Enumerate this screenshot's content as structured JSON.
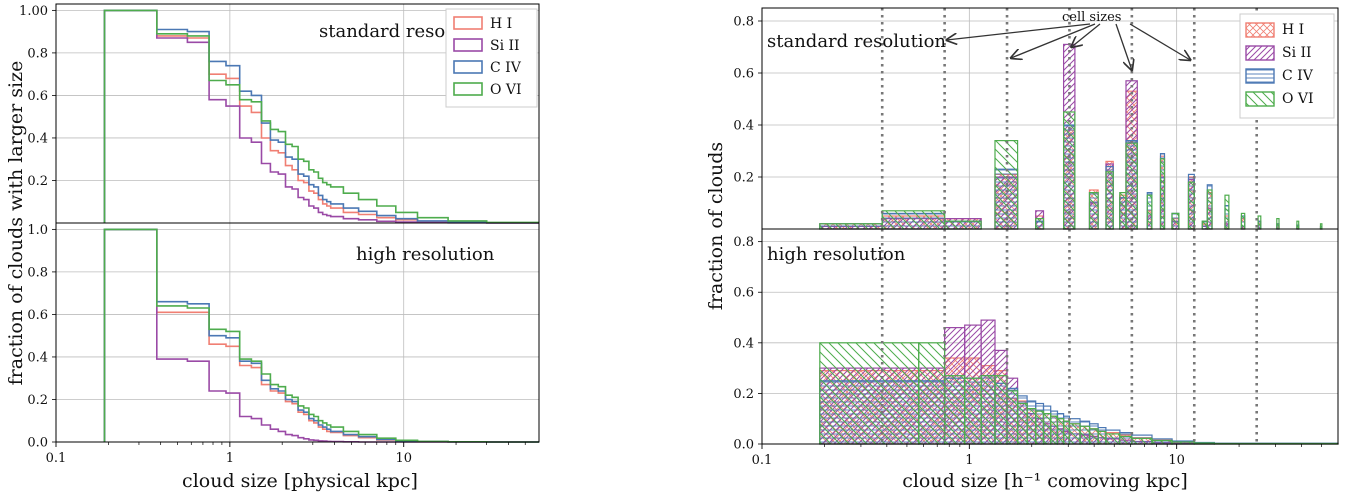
{
  "chart_data": [
    {
      "type": "line",
      "xlabel": "cloud size [physical kpc]",
      "ylabel": "fraction of clouds with larger size",
      "xscale": "log",
      "xlim": [
        0.1,
        60
      ],
      "x_ticks": [
        {
          "v": 0.1,
          "label": "0.1"
        },
        {
          "v": 1,
          "label": "1"
        },
        {
          "v": 10,
          "label": "10"
        }
      ],
      "grid": true,
      "legend": {
        "placement": "top-right",
        "entries": [
          "H I",
          "Si II",
          "C IV",
          "O VI"
        ]
      },
      "colors": {
        "H I": "#f07f73",
        "Si II": "#9a4aa6",
        "C IV": "#4b78b4",
        "O VI": "#4eac4d"
      },
      "edges": [
        0.19,
        0.38,
        0.57,
        0.76,
        0.95,
        1.14,
        1.33,
        1.52,
        1.71,
        1.9,
        2.09,
        2.28,
        2.47,
        2.66,
        2.85,
        3.04,
        3.23,
        3.42,
        3.61,
        3.8,
        4.5,
        5.5,
        7,
        9,
        12,
        18,
        30,
        60
      ],
      "panels": [
        {
          "title": "standard resolution",
          "ylim": [
            0,
            1.03
          ],
          "y_ticks": [
            {
              "v": 0.2,
              "label": "0.2"
            },
            {
              "v": 0.4,
              "label": "0.4"
            },
            {
              "v": 0.6,
              "label": "0.6"
            },
            {
              "v": 0.8,
              "label": "0.8"
            },
            {
              "v": 1.0,
              "label": "1.00"
            }
          ],
          "series": [
            {
              "name": "H I",
              "values": [
                1.0,
                0.88,
                0.87,
                0.7,
                0.68,
                0.55,
                0.52,
                0.4,
                0.34,
                0.33,
                0.27,
                0.25,
                0.2,
                0.19,
                0.15,
                0.14,
                0.11,
                0.09,
                0.08,
                0.07,
                0.05,
                0.04,
                0.025,
                0.015,
                0.008,
                0.003,
                0.001
              ]
            },
            {
              "name": "Si II",
              "values": [
                1.0,
                0.87,
                0.85,
                0.58,
                0.55,
                0.4,
                0.38,
                0.28,
                0.24,
                0.23,
                0.17,
                0.16,
                0.12,
                0.11,
                0.08,
                0.07,
                0.05,
                0.04,
                0.035,
                0.03,
                0.02,
                0.015,
                0.008,
                0.004,
                0.002,
                0.001,
                0.0
              ]
            },
            {
              "name": "C IV",
              "values": [
                1.0,
                0.91,
                0.9,
                0.76,
                0.74,
                0.62,
                0.6,
                0.47,
                0.39,
                0.38,
                0.31,
                0.3,
                0.23,
                0.22,
                0.18,
                0.17,
                0.13,
                0.11,
                0.1,
                0.09,
                0.07,
                0.055,
                0.035,
                0.02,
                0.01,
                0.004,
                0.001
              ]
            },
            {
              "name": "O VI",
              "values": [
                1.0,
                0.89,
                0.88,
                0.67,
                0.65,
                0.58,
                0.57,
                0.48,
                0.44,
                0.43,
                0.37,
                0.36,
                0.3,
                0.29,
                0.25,
                0.24,
                0.21,
                0.19,
                0.18,
                0.17,
                0.14,
                0.11,
                0.08,
                0.05,
                0.025,
                0.01,
                0.003
              ]
            }
          ]
        },
        {
          "title": "high resolution",
          "ylim": [
            0,
            1.03
          ],
          "y_ticks": [
            {
              "v": 0.0,
              "label": "0.0"
            },
            {
              "v": 0.2,
              "label": "0.2"
            },
            {
              "v": 0.4,
              "label": "0.4"
            },
            {
              "v": 0.6,
              "label": "0.6"
            },
            {
              "v": 0.8,
              "label": "0.8"
            },
            {
              "v": 1.0,
              "label": "1.0"
            }
          ],
          "series": [
            {
              "name": "H I",
              "values": [
                1.0,
                0.61,
                0.61,
                0.46,
                0.45,
                0.36,
                0.35,
                0.27,
                0.24,
                0.23,
                0.19,
                0.18,
                0.14,
                0.13,
                0.1,
                0.09,
                0.07,
                0.06,
                0.05,
                0.045,
                0.03,
                0.02,
                0.01,
                0.005,
                0.002,
                0.001,
                0.0
              ]
            },
            {
              "name": "Si II",
              "values": [
                1.0,
                0.39,
                0.38,
                0.24,
                0.23,
                0.12,
                0.11,
                0.08,
                0.06,
                0.05,
                0.035,
                0.03,
                0.02,
                0.015,
                0.01,
                0.008,
                0.005,
                0.004,
                0.003,
                0.002,
                0.001,
                0.0,
                0.0,
                0.0,
                0.0,
                0.0,
                0.0
              ]
            },
            {
              "name": "C IV",
              "values": [
                1.0,
                0.66,
                0.65,
                0.5,
                0.49,
                0.38,
                0.37,
                0.29,
                0.25,
                0.24,
                0.2,
                0.19,
                0.15,
                0.14,
                0.11,
                0.1,
                0.08,
                0.07,
                0.06,
                0.05,
                0.035,
                0.025,
                0.012,
                0.006,
                0.002,
                0.001,
                0.0
              ]
            },
            {
              "name": "O VI",
              "values": [
                1.0,
                0.64,
                0.63,
                0.53,
                0.52,
                0.39,
                0.38,
                0.32,
                0.27,
                0.26,
                0.22,
                0.21,
                0.17,
                0.16,
                0.13,
                0.12,
                0.1,
                0.09,
                0.08,
                0.07,
                0.05,
                0.035,
                0.018,
                0.008,
                0.003,
                0.001,
                0.0
              ]
            }
          ]
        }
      ]
    },
    {
      "type": "bar",
      "xlabel": "cloud size [h⁻¹ comoving kpc]",
      "ylabel": "fraction of clouds",
      "xscale": "log",
      "xlim": [
        0.1,
        60
      ],
      "x_ticks": [
        {
          "v": 0.1,
          "label": "0.1"
        },
        {
          "v": 1,
          "label": "1"
        },
        {
          "v": 10,
          "label": "10"
        }
      ],
      "grid": true,
      "legend": {
        "placement": "top-right",
        "entries": [
          "H I",
          "Si II",
          "C IV",
          "O VI"
        ]
      },
      "colors": {
        "H I": "#f07f73",
        "Si II": "#9a4aa6",
        "C IV": "#4b78b4",
        "O VI": "#4eac4d"
      },
      "cell_size_lines": [
        0.38,
        0.76,
        1.52,
        3.04,
        6.08,
        12.16,
        24.32
      ],
      "annotation": {
        "text": "cell sizes",
        "arrow_targets": [
          0.76,
          1.52,
          3.04,
          6.08,
          12.16
        ]
      },
      "panels": [
        {
          "title": "standard resolution",
          "ylim": [
            0,
            0.85
          ],
          "y_ticks": [
            {
              "v": 0.2,
              "label": "0.2"
            },
            {
              "v": 0.4,
              "label": "0.4"
            },
            {
              "v": 0.6,
              "label": "0.6"
            },
            {
              "v": 0.8,
              "label": "0.8"
            }
          ],
          "edges": [
            0.19,
            0.38,
            0.76,
            1.14,
            1.33,
            1.71,
            2.09,
            2.28,
            2.85,
            3.23,
            3.8,
            4.18,
            4.56,
            4.94,
            5.32,
            5.7,
            6.46,
            7.22,
            7.6,
            8.36,
            8.74,
            9.5,
            10.26,
            11.4,
            12.16,
            13.3,
            14.06,
            14.82,
            17.1,
            17.86,
            20.52,
            21.28,
            24.7,
            25.46,
            30.4,
            31.16,
            38.0,
            38.76,
            49.4,
            50.16,
            60.0
          ],
          "series": [
            {
              "name": "H I",
              "values": [
                0.02,
                0.05,
                0.04,
                0.0,
                0.21,
                0.0,
                0.05,
                0.0,
                0.38,
                0.0,
                0.15,
                0.0,
                0.26,
                0.0,
                0.13,
                0.53,
                0.0,
                0.07,
                0.0,
                0.28,
                0.0,
                0.04,
                0.0,
                0.2,
                0.0,
                0.02,
                0.14,
                0.0,
                0.05,
                0.0,
                0.04,
                0.0,
                0.03,
                0.0,
                0.02,
                0.0,
                0.015,
                0.0,
                0.01,
                0.0
              ]
            },
            {
              "name": "Si II",
              "values": [
                0.01,
                0.04,
                0.04,
                0.0,
                0.2,
                0.0,
                0.07,
                0.0,
                0.71,
                0.0,
                0.1,
                0.0,
                0.25,
                0.0,
                0.12,
                0.57,
                0.0,
                0.05,
                0.0,
                0.2,
                0.0,
                0.03,
                0.0,
                0.19,
                0.0,
                0.01,
                0.08,
                0.0,
                0.02,
                0.0,
                0.01,
                0.0,
                0.005,
                0.0,
                0.003,
                0.0,
                0.002,
                0.0,
                0.001,
                0.0
              ]
            },
            {
              "name": "C IV",
              "values": [
                0.02,
                0.06,
                0.03,
                0.0,
                0.23,
                0.0,
                0.03,
                0.0,
                0.4,
                0.0,
                0.14,
                0.0,
                0.24,
                0.0,
                0.12,
                0.34,
                0.0,
                0.14,
                0.0,
                0.29,
                0.0,
                0.06,
                0.0,
                0.21,
                0.0,
                0.03,
                0.17,
                0.0,
                0.09,
                0.0,
                0.05,
                0.0,
                0.03,
                0.0,
                0.02,
                0.0,
                0.015,
                0.0,
                0.01,
                0.0
              ]
            },
            {
              "name": "O VI",
              "values": [
                0.02,
                0.07,
                0.03,
                0.0,
                0.34,
                0.0,
                0.04,
                0.0,
                0.45,
                0.0,
                0.14,
                0.0,
                0.22,
                0.0,
                0.14,
                0.33,
                0.0,
                0.13,
                0.0,
                0.27,
                0.0,
                0.06,
                0.0,
                0.18,
                0.0,
                0.03,
                0.15,
                0.0,
                0.13,
                0.0,
                0.06,
                0.0,
                0.05,
                0.0,
                0.04,
                0.0,
                0.03,
                0.0,
                0.02,
                0.0
              ]
            }
          ]
        },
        {
          "title": "high resolution",
          "ylim": [
            0,
            0.85
          ],
          "y_ticks": [
            {
              "v": 0.0,
              "label": "0.0"
            },
            {
              "v": 0.2,
              "label": "0.2"
            },
            {
              "v": 0.4,
              "label": "0.4"
            },
            {
              "v": 0.6,
              "label": "0.6"
            },
            {
              "v": 0.8,
              "label": "0.8"
            }
          ],
          "edges": [
            0.19,
            0.57,
            0.76,
            0.95,
            1.14,
            1.33,
            1.52,
            1.71,
            1.9,
            2.09,
            2.28,
            2.47,
            2.66,
            2.85,
            3.04,
            3.42,
            3.8,
            4.18,
            4.56,
            5.32,
            6.08,
            7.6,
            9.5,
            12.16,
            15.2,
            60.0
          ],
          "series": [
            {
              "name": "H I",
              "values": [
                0.29,
                0.29,
                0.34,
                0.34,
                0.31,
                0.29,
                0.18,
                0.17,
                0.14,
                0.13,
                0.12,
                0.11,
                0.1,
                0.09,
                0.08,
                0.07,
                0.06,
                0.05,
                0.045,
                0.035,
                0.025,
                0.015,
                0.01,
                0.005,
                0.002
              ]
            },
            {
              "name": "Si II",
              "values": [
                0.3,
                0.3,
                0.46,
                0.47,
                0.49,
                0.37,
                0.26,
                0.16,
                0.12,
                0.1,
                0.08,
                0.07,
                0.06,
                0.05,
                0.04,
                0.035,
                0.03,
                0.025,
                0.02,
                0.015,
                0.01,
                0.005,
                0.003,
                0.001,
                0.0
              ]
            },
            {
              "name": "C IV",
              "values": [
                0.25,
                0.25,
                0.26,
                0.26,
                0.27,
                0.24,
                0.22,
                0.19,
                0.17,
                0.16,
                0.15,
                0.13,
                0.12,
                0.11,
                0.1,
                0.09,
                0.08,
                0.065,
                0.055,
                0.045,
                0.035,
                0.02,
                0.012,
                0.006,
                0.003
              ]
            },
            {
              "name": "O VI",
              "values": [
                0.4,
                0.4,
                0.27,
                0.26,
                0.27,
                0.27,
                0.21,
                0.16,
                0.14,
                0.13,
                0.12,
                0.11,
                0.1,
                0.09,
                0.08,
                0.07,
                0.06,
                0.05,
                0.04,
                0.03,
                0.022,
                0.014,
                0.008,
                0.004,
                0.002
              ]
            }
          ]
        }
      ]
    }
  ]
}
